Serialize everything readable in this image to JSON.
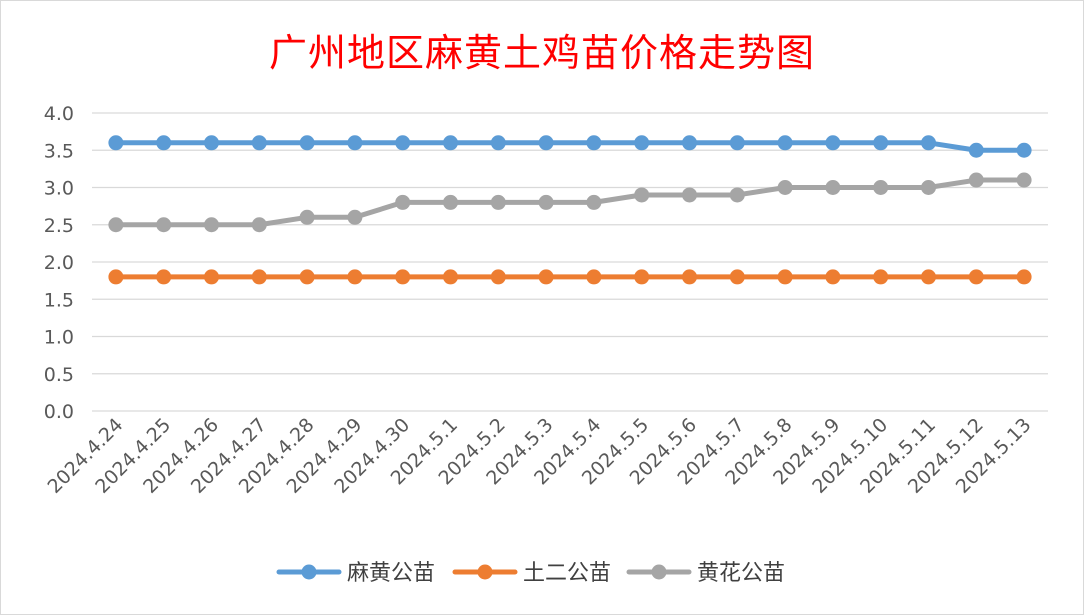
{
  "chart_data": {
    "type": "line",
    "title": "广州地区麻黄土鸡苗价格走势图",
    "xlabel": "",
    "ylabel": "",
    "categories": [
      "2024.4.24",
      "2024.4.25",
      "2024.4.26",
      "2024.4.27",
      "2024.4.28",
      "2024.4.29",
      "2024.4.30",
      "2024.5.1",
      "2024.5.2",
      "2024.5.3",
      "2024.5.4",
      "2024.5.5",
      "2024.5.6",
      "2024.5.7",
      "2024.5.8",
      "2024.5.9",
      "2024.5.10",
      "2024.5.11",
      "2024.5.12",
      "2024.5.13"
    ],
    "ylim": [
      0,
      4
    ],
    "yticks": [
      "0.0",
      "0.5",
      "1.0",
      "1.5",
      "2.0",
      "2.5",
      "3.0",
      "3.5",
      "4.0"
    ],
    "grid": true,
    "legend_position": "bottom",
    "series": [
      {
        "name": "麻黄公苗",
        "color": "#5b9bd5",
        "values": [
          3.6,
          3.6,
          3.6,
          3.6,
          3.6,
          3.6,
          3.6,
          3.6,
          3.6,
          3.6,
          3.6,
          3.6,
          3.6,
          3.6,
          3.6,
          3.6,
          3.6,
          3.6,
          3.5,
          3.5
        ]
      },
      {
        "name": "土二公苗",
        "color": "#ed7d31",
        "values": [
          1.8,
          1.8,
          1.8,
          1.8,
          1.8,
          1.8,
          1.8,
          1.8,
          1.8,
          1.8,
          1.8,
          1.8,
          1.8,
          1.8,
          1.8,
          1.8,
          1.8,
          1.8,
          1.8,
          1.8
        ]
      },
      {
        "name": "黄花公苗",
        "color": "#a5a5a5",
        "values": [
          2.5,
          2.5,
          2.5,
          2.5,
          2.6,
          2.6,
          2.8,
          2.8,
          2.8,
          2.8,
          2.8,
          2.9,
          2.9,
          2.9,
          3.0,
          3.0,
          3.0,
          3.0,
          3.1,
          3.1
        ]
      }
    ]
  }
}
